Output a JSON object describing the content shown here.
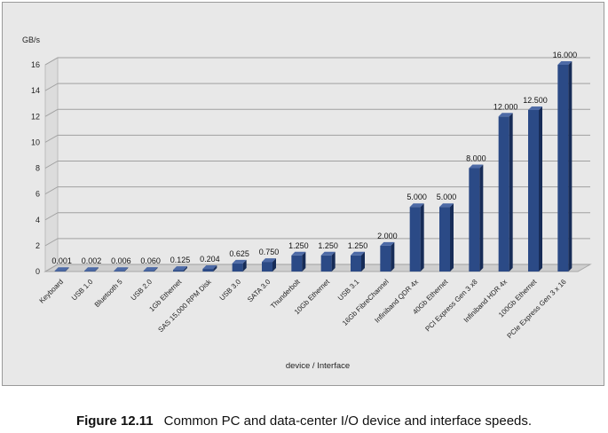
{
  "chart_data": {
    "type": "bar",
    "ylabel": "GB/s",
    "xlabel": "device / Interface",
    "ylim": [
      0,
      16
    ],
    "yticks": [
      0,
      2,
      4,
      6,
      8,
      10,
      12,
      14,
      16
    ],
    "grid": true,
    "bar_style": "3d",
    "bar_color": "#2b4a86",
    "categories": [
      "Keyboard",
      "USB 1.0",
      "Bluetooth 5",
      "USB 2.0",
      "1Gb Ethernet",
      "SAS 15,000 RPM Disk",
      "USB 3.0",
      "SATA 3.0",
      "Thunderbolt",
      "10Gb Ethernet",
      "USB 3.1",
      "16Gb FibreChannel",
      "Infiniband QDR 4x",
      "40Gb Ethernet",
      "PCI Express Gen 3 x8",
      "Infiniband HDR 4x",
      "100Gb Ethernet",
      "PCIe Express Gen 3 x 16"
    ],
    "values": [
      0.001,
      0.002,
      0.006,
      0.06,
      0.125,
      0.204,
      0.625,
      0.75,
      1.25,
      1.25,
      1.25,
      2.0,
      5.0,
      5.0,
      8.0,
      12.0,
      12.5,
      16.0
    ],
    "value_labels": [
      "0.001",
      "0.002",
      "0.006",
      "0.060",
      "0.125",
      "0.204",
      "0.625",
      "0.750",
      "1.250",
      "1.250",
      "1.250",
      "2.000",
      "5.000",
      "5.000",
      "8.000",
      "12.000",
      "12.500",
      "16.000"
    ]
  },
  "caption": {
    "label": "Figure 12.11",
    "text": "Common PC and data-center I/O device and interface speeds."
  }
}
